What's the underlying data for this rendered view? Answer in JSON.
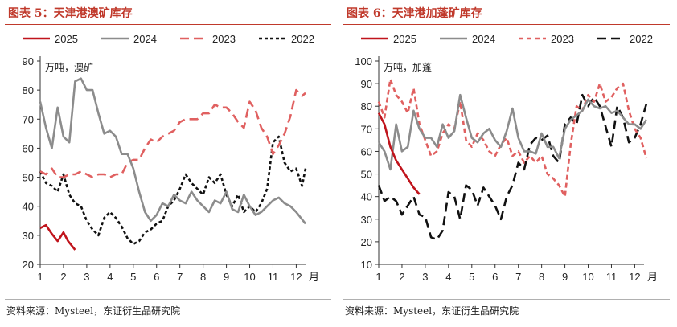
{
  "charts": [
    {
      "title": "图表 5：天津港澳矿库存",
      "source": "资料来源：Mysteel，东证衍生品研究院",
      "chart_data": {
        "type": "line",
        "unit_label": "万吨，澳矿",
        "x_unit": "月",
        "x_ticks": [
          "1",
          "2",
          "3",
          "4",
          "5",
          "6",
          "7",
          "8",
          "9",
          "10",
          "11",
          "12"
        ],
        "y_ticks": [
          20,
          30,
          40,
          50,
          60,
          70,
          80,
          90
        ],
        "xlim": [
          1,
          12.4
        ],
        "ylim": [
          20,
          90
        ],
        "legend_position": "top",
        "series": [
          {
            "name": "2025",
            "color": "#c0141c",
            "dash": "solid",
            "x": [
              1,
              1.25,
              1.5,
              1.75,
              2,
              2.2,
              2.5
            ],
            "y": [
              32.5,
              33.5,
              30.5,
              28,
              31,
              28,
              25
            ]
          },
          {
            "name": "2024",
            "color": "#8c8c8c",
            "dash": "solid",
            "x": [
              1,
              1.25,
              1.5,
              1.75,
              2,
              2.25,
              2.5,
              2.75,
              3,
              3.25,
              3.5,
              3.75,
              4,
              4.25,
              4.5,
              4.75,
              5,
              5.25,
              5.5,
              5.75,
              6,
              6.25,
              6.5,
              6.75,
              7,
              7.25,
              7.5,
              7.75,
              8,
              8.25,
              8.5,
              8.75,
              9,
              9.25,
              9.5,
              9.75,
              10,
              10.25,
              10.5,
              10.75,
              11,
              11.25,
              11.5,
              11.75,
              12,
              12.4
            ],
            "y": [
              76,
              67,
              60,
              74,
              64,
              62,
              83,
              84,
              80,
              80,
              72,
              65,
              66,
              64,
              58,
              58,
              53,
              45,
              38,
              35,
              37,
              41,
              40,
              44,
              42,
              41,
              45,
              42,
              40,
              38,
              42,
              41,
              45,
              39,
              38,
              44,
              40,
              37,
              38,
              40,
              42,
              43,
              41,
              40,
              38,
              34
            ]
          },
          {
            "name": "2023",
            "color": "#e06060",
            "dash": "long",
            "x": [
              1,
              1.25,
              1.5,
              1.75,
              2,
              2.25,
              2.5,
              2.75,
              3,
              3.25,
              3.5,
              3.75,
              4,
              4.25,
              4.5,
              4.75,
              5,
              5.25,
              5.5,
              5.75,
              6,
              6.25,
              6.5,
              6.75,
              7,
              7.25,
              7.5,
              7.75,
              8,
              8.25,
              8.5,
              8.75,
              9,
              9.25,
              9.5,
              9.75,
              10,
              10.25,
              10.5,
              10.75,
              11,
              11.25,
              11.5,
              11.75,
              12,
              12.25,
              12.4
            ],
            "y": [
              52,
              51,
              53,
              50,
              50,
              51,
              51,
              52,
              51,
              50,
              51,
              51,
              50,
              51,
              51,
              55,
              56,
              56,
              60,
              63,
              62,
              64,
              65,
              66,
              69,
              70,
              70,
              70,
              72,
              72,
              75,
              74,
              74,
              72,
              69,
              67,
              76,
              73,
              67,
              64,
              58,
              61,
              65,
              71,
              80,
              78,
              79
            ]
          },
          {
            "name": "2022",
            "color": "#111111",
            "dash": "short",
            "x": [
              1,
              1.25,
              1.5,
              1.75,
              2,
              2.25,
              2.5,
              2.75,
              3,
              3.25,
              3.5,
              3.75,
              4,
              4.25,
              4.5,
              4.75,
              5,
              5.25,
              5.5,
              5.75,
              6,
              6.25,
              6.5,
              6.75,
              7,
              7.25,
              7.5,
              7.75,
              8,
              8.25,
              8.5,
              8.75,
              9,
              9.25,
              9.5,
              9.75,
              10,
              10.25,
              10.5,
              10.75,
              11,
              11.25,
              11.5,
              11.75,
              12,
              12.25,
              12.4
            ],
            "y": [
              52,
              48,
              47,
              45,
              51,
              44,
              41,
              40,
              35,
              32,
              30,
              36,
              38,
              36,
              33,
              29,
              27,
              28,
              31,
              32,
              34,
              35,
              40,
              42,
              46,
              51,
              48,
              46,
              44,
              50,
              48,
              51,
              44,
              40,
              44,
              38,
              40,
              38,
              41,
              46,
              62,
              64,
              55,
              52,
              53,
              47,
              53
            ]
          }
        ]
      }
    },
    {
      "title": "图表 6：天津港加蓬矿库存",
      "source": "资料来源：Mysteel，东证衍生品研究院",
      "chart_data": {
        "type": "line",
        "unit_label": "万吨，加蓬",
        "x_unit": "月",
        "x_ticks": [
          "1",
          "2",
          "3",
          "4",
          "5",
          "6",
          "7",
          "8",
          "9",
          "10",
          "11",
          "12"
        ],
        "y_ticks": [
          10,
          20,
          30,
          40,
          50,
          60,
          70,
          80,
          90,
          100
        ],
        "xlim": [
          1,
          12.4
        ],
        "ylim": [
          10,
          100
        ],
        "legend_position": "top",
        "series": [
          {
            "name": "2025",
            "color": "#c0141c",
            "dash": "solid",
            "x": [
              1,
              1.25,
              1.5,
              1.75,
              2,
              2.25,
              2.5,
              2.75
            ],
            "y": [
              77,
              72,
              62,
              56,
              52,
              48,
              44,
              41
            ]
          },
          {
            "name": "2024",
            "color": "#8c8c8c",
            "dash": "solid",
            "x": [
              1,
              1.25,
              1.5,
              1.75,
              2,
              2.25,
              2.5,
              2.75,
              3,
              3.25,
              3.5,
              3.75,
              4,
              4.25,
              4.5,
              4.75,
              5,
              5.25,
              5.5,
              5.75,
              6,
              6.25,
              6.5,
              6.75,
              7,
              7.25,
              7.5,
              7.75,
              8,
              8.25,
              8.5,
              8.75,
              9,
              9.25,
              9.5,
              9.75,
              10,
              10.25,
              10.5,
              10.75,
              11,
              11.25,
              11.5,
              11.75,
              12,
              12.25,
              12.5
            ],
            "y": [
              64,
              60,
              52,
              72,
              60,
              62,
              78,
              70,
              66,
              66,
              62,
              72,
              66,
              69,
              85,
              75,
              66,
              64,
              68,
              70,
              65,
              62,
              69,
              79,
              66,
              60,
              60,
              59,
              68,
              62,
              62,
              57,
              70,
              74,
              76,
              78,
              83,
              80,
              79,
              80,
              77,
              78,
              75,
              72,
              72,
              70,
              74
            ]
          },
          {
            "name": "2023",
            "color": "#e06060",
            "dash": "medium",
            "x": [
              1,
              1.25,
              1.5,
              1.75,
              2,
              2.25,
              2.5,
              2.75,
              3,
              3.25,
              3.5,
              3.75,
              4,
              4.25,
              4.5,
              4.75,
              5,
              5.25,
              5.5,
              5.75,
              6,
              6.25,
              6.5,
              6.75,
              7,
              7.25,
              7.5,
              7.75,
              8,
              8.25,
              8.5,
              8.75,
              9,
              9.25,
              9.5,
              9.75,
              10,
              10.25,
              10.5,
              10.75,
              11,
              11.25,
              11.5,
              11.75,
              12,
              12.25,
              12.5
            ],
            "y": [
              82,
              75,
              92,
              85,
              82,
              77,
              88,
              72,
              65,
              58,
              60,
              68,
              72,
              70,
              82,
              65,
              62,
              68,
              65,
              60,
              58,
              63,
              66,
              58,
              60,
              55,
              58,
              55,
              58,
              50,
              48,
              45,
              40,
              63,
              80,
              78,
              85,
              82,
              90,
              82,
              84,
              88,
              90,
              78,
              70,
              66,
              57
            ]
          },
          {
            "name": "2022",
            "color": "#111111",
            "dash": "long",
            "x": [
              1,
              1.25,
              1.5,
              1.75,
              2,
              2.25,
              2.5,
              2.75,
              3,
              3.25,
              3.5,
              3.75,
              4,
              4.25,
              4.5,
              4.75,
              5,
              5.25,
              5.5,
              5.75,
              6,
              6.25,
              6.5,
              6.75,
              7,
              7.25,
              7.5,
              7.75,
              8,
              8.25,
              8.5,
              8.75,
              9,
              9.25,
              9.5,
              9.75,
              10,
              10.25,
              10.5,
              10.75,
              11,
              11.25,
              11.5,
              11.75,
              12,
              12.25,
              12.5
            ],
            "y": [
              45,
              38,
              40,
              38,
              32,
              36,
              40,
              32,
              31,
              22,
              21,
              25,
              42,
              40,
              30,
              45,
              43,
              36,
              44,
              40,
              36,
              30,
              40,
              45,
              55,
              52,
              63,
              66,
              65,
              67,
              58,
              55,
              72,
              75,
              72,
              85,
              80,
              84,
              80,
              71,
              62,
              80,
              75,
              64,
              66,
              72,
              81
            ]
          }
        ]
      }
    }
  ]
}
